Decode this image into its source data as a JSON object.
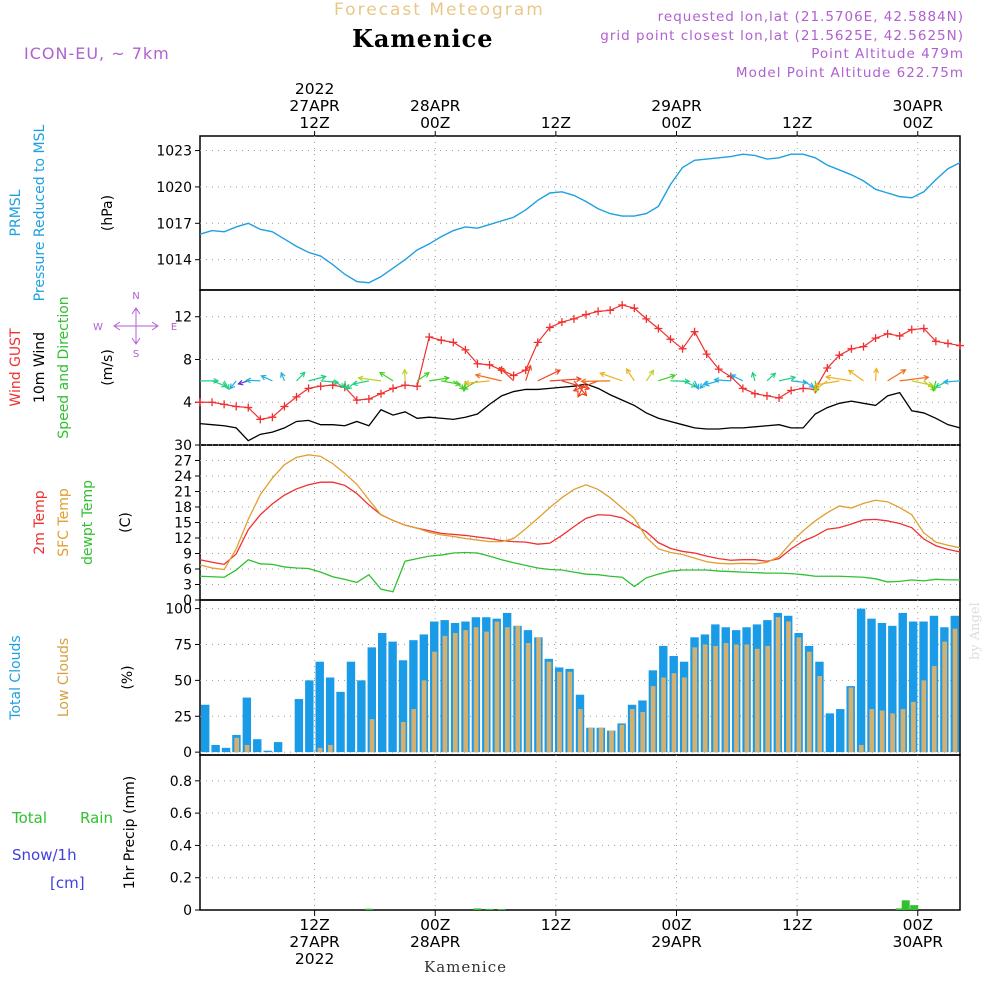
{
  "header": {
    "product": "Forecast Meteogram",
    "place": "Kamenice",
    "model": "ICON-EU, ~ 7km",
    "requested": "requested lon,lat (21.5706E, 42.5884N)",
    "grid_point": "grid point closest lon,lat (21.5625E, 42.5625N)",
    "point_altitude": "Point Altitude 479m",
    "model_altitude": "Model Point Altitude 622.75m",
    "byline": "by Angel",
    "footer": "Kamenice"
  },
  "time_axis": {
    "start_hour": 0,
    "end_hour": 63,
    "gridline_hours": [
      9.5,
      19.5,
      29.5,
      39.5,
      49.5,
      59.5
    ],
    "top_labels": [
      {
        "hour": 9.5,
        "lines": [
          "2022",
          "27APR",
          "12Z"
        ]
      },
      {
        "hour": 19.5,
        "lines": [
          "28APR",
          "00Z"
        ]
      },
      {
        "hour": 29.5,
        "lines": [
          "12Z"
        ]
      },
      {
        "hour": 39.5,
        "lines": [
          "29APR",
          "00Z"
        ]
      },
      {
        "hour": 49.5,
        "lines": [
          "12Z"
        ]
      },
      {
        "hour": 59.5,
        "lines": [
          "30APR",
          "00Z"
        ]
      }
    ],
    "bottom_labels": [
      {
        "hour": 9.5,
        "lines": [
          "12Z",
          "27APR",
          "2022"
        ]
      },
      {
        "hour": 19.5,
        "lines": [
          "00Z",
          "28APR"
        ]
      },
      {
        "hour": 29.5,
        "lines": [
          "12Z"
        ]
      },
      {
        "hour": 39.5,
        "lines": [
          "00Z",
          "29APR"
        ]
      },
      {
        "hour": 49.5,
        "lines": [
          "12Z"
        ]
      },
      {
        "hour": 59.5,
        "lines": [
          "00Z",
          "30APR"
        ]
      }
    ]
  },
  "chart_data": [
    {
      "type": "line",
      "panel": "pressure",
      "ylabels": [
        {
          "text": "PRMSL",
          "color": "#1fa0e0"
        },
        {
          "text": "Pressure Reduced to MSL",
          "color": "#1fa0e0"
        }
      ],
      "unit": "(hPa)",
      "ylim": [
        1011.5,
        1024.2
      ],
      "yticks": [
        1014,
        1017,
        1020,
        1023
      ],
      "series": [
        {
          "color": "#1fa0e0",
          "values": [
            1016.1,
            1016.4,
            1016.3,
            1016.7,
            1017.0,
            1016.5,
            1016.3,
            1015.7,
            1015.1,
            1014.6,
            1014.3,
            1013.6,
            1012.8,
            1012.2,
            1012.1,
            1012.6,
            1013.3,
            1014.0,
            1014.8,
            1015.3,
            1015.9,
            1016.4,
            1016.7,
            1016.6,
            1016.9,
            1017.2,
            1017.5,
            1018.1,
            1018.9,
            1019.5,
            1019.6,
            1019.3,
            1018.8,
            1018.2,
            1017.8,
            1017.6,
            1017.6,
            1017.8,
            1018.4,
            1020.2,
            1021.6,
            1022.2,
            1022.3,
            1022.4,
            1022.5,
            1022.7,
            1022.6,
            1022.3,
            1022.4,
            1022.7,
            1022.7,
            1022.4,
            1021.8,
            1021.4,
            1021.0,
            1020.5,
            1019.8,
            1019.5,
            1019.2,
            1019.1,
            1019.6,
            1020.6,
            1021.5,
            1022.0
          ]
        }
      ]
    },
    {
      "type": "line",
      "panel": "wind",
      "ylabels": [
        {
          "text": "Wind GUST",
          "color": "#f03030"
        },
        {
          "text": "10m Wind",
          "color": "#000000"
        },
        {
          "text": "Speed and Direction",
          "color": "#30c030"
        }
      ],
      "unit": "(m/s)",
      "ylim": [
        0,
        14.5
      ],
      "yticks": [
        4,
        8,
        12
      ],
      "compass": {
        "n": "N",
        "s": "S",
        "w": "W",
        "e": "E"
      },
      "series": [
        {
          "name": "Wind GUST",
          "color": "#f03030",
          "marker": "+",
          "values": [
            4.0,
            4.0,
            3.8,
            3.6,
            3.5,
            2.4,
            2.6,
            3.6,
            4.5,
            5.3,
            5.5,
            5.6,
            5.4,
            4.2,
            4.3,
            4.8,
            5.3,
            5.6,
            5.5,
            10.1,
            9.8,
            9.6,
            8.9,
            7.6,
            7.5,
            7.0,
            6.5,
            7.0,
            9.6,
            11.0,
            11.5,
            11.8,
            12.2,
            12.5,
            12.6,
            13.1,
            12.8,
            11.8,
            10.9,
            9.9,
            9.0,
            10.6,
            8.5,
            7.1,
            6.4,
            5.3,
            4.8,
            4.6,
            4.4,
            5.1,
            5.3,
            5.2,
            7.2,
            8.4,
            9.0,
            9.2,
            10.0,
            10.4,
            10.2,
            10.8,
            10.9,
            9.7,
            9.5,
            9.3
          ]
        },
        {
          "name": "10m Wind",
          "color": "#000000",
          "values": [
            2.0,
            1.9,
            1.8,
            1.6,
            0.4,
            1.0,
            1.2,
            1.6,
            2.2,
            2.3,
            1.9,
            1.9,
            1.8,
            2.2,
            1.8,
            3.3,
            2.8,
            3.1,
            2.5,
            2.6,
            2.5,
            2.4,
            2.6,
            2.9,
            3.8,
            4.6,
            5.0,
            5.2,
            5.2,
            5.3,
            5.4,
            5.5,
            5.7,
            5.3,
            4.7,
            4.2,
            3.7,
            3.0,
            2.5,
            2.2,
            1.9,
            1.6,
            1.5,
            1.5,
            1.6,
            1.6,
            1.7,
            1.8,
            1.9,
            1.6,
            1.6,
            2.9,
            3.5,
            3.9,
            4.1,
            3.9,
            3.7,
            4.6,
            4.9,
            3.2,
            3.0,
            2.5,
            1.9,
            1.6
          ]
        }
      ]
    },
    {
      "type": "line",
      "panel": "temperature",
      "ylabels": [
        {
          "text": "2m Temp",
          "color": "#f03030"
        },
        {
          "text": "SFC Temp",
          "color": "#e0a030"
        },
        {
          "text": "dewpt Temp",
          "color": "#30c030"
        }
      ],
      "unit": "(C)",
      "ylim": [
        0,
        30
      ],
      "yticks": [
        0,
        3,
        6,
        9,
        12,
        15,
        18,
        21,
        24,
        27,
        30
      ],
      "series": [
        {
          "name": "2m Temp",
          "color": "#f03030",
          "values": [
            7.8,
            7.3,
            6.9,
            8.9,
            13.6,
            16.5,
            18.6,
            20.3,
            21.5,
            22.3,
            22.8,
            22.8,
            22.2,
            20.6,
            18.4,
            16.5,
            15.4,
            14.5,
            13.9,
            13.4,
            12.9,
            12.7,
            12.5,
            12.2,
            11.9,
            11.5,
            11.3,
            11.2,
            10.8,
            11.0,
            12.5,
            14.2,
            15.8,
            16.5,
            16.4,
            15.9,
            14.5,
            13.2,
            11.1,
            10.0,
            9.4,
            9.1,
            8.5,
            8.0,
            7.7,
            7.8,
            7.8,
            7.5,
            8.0,
            9.9,
            11.4,
            12.4,
            13.7,
            14.0,
            14.7,
            15.5,
            15.6,
            15.3,
            14.8,
            14.0,
            11.8,
            10.5,
            9.8,
            9.3
          ]
        },
        {
          "name": "SFC Temp",
          "color": "#e0a030",
          "values": [
            6.8,
            6.2,
            5.9,
            9.9,
            15.6,
            20.4,
            23.6,
            26.2,
            27.6,
            28.1,
            27.8,
            26.4,
            24.5,
            22.4,
            19.4,
            16.5,
            15.4,
            14.5,
            13.9,
            13.1,
            12.6,
            12.3,
            11.9,
            11.6,
            11.3,
            11.3,
            11.9,
            13.8,
            15.8,
            17.9,
            19.8,
            21.4,
            22.3,
            21.4,
            19.8,
            17.8,
            15.8,
            12.1,
            9.9,
            9.2,
            8.8,
            8.1,
            7.4,
            7.1,
            7.0,
            7.1,
            7.0,
            7.3,
            8.4,
            11.1,
            13.4,
            15.3,
            16.9,
            18.2,
            17.8,
            18.7,
            19.3,
            19.0,
            17.9,
            16.5,
            13.0,
            11.2,
            10.6,
            10.1
          ]
        },
        {
          "name": "dewpt Temp",
          "color": "#30c030",
          "values": [
            4.6,
            4.5,
            4.4,
            5.8,
            7.8,
            7.0,
            6.9,
            6.4,
            6.2,
            6.1,
            5.4,
            4.5,
            4.0,
            3.4,
            4.9,
            2.1,
            1.6,
            7.5,
            8.0,
            8.5,
            8.7,
            9.1,
            9.2,
            9.1,
            8.5,
            7.8,
            7.2,
            6.7,
            6.2,
            5.9,
            5.8,
            5.4,
            5.0,
            4.9,
            4.6,
            4.4,
            2.6,
            4.3,
            5.0,
            5.6,
            5.8,
            5.8,
            5.8,
            5.6,
            5.5,
            5.4,
            5.3,
            5.2,
            5.2,
            5.1,
            4.9,
            4.6,
            4.6,
            4.6,
            4.5,
            4.4,
            4.1,
            3.5,
            3.6,
            3.9,
            3.7,
            4.0,
            3.9,
            3.9
          ]
        }
      ]
    },
    {
      "type": "bar",
      "panel": "clouds",
      "ylabels": [
        {
          "text": "Total Clouds",
          "color": "#1fa0e0"
        },
        {
          "text": "Low Clouds",
          "color": "#d4a040"
        }
      ],
      "unit": "(%)",
      "ylim": [
        -2,
        106
      ],
      "yticks": [
        0,
        25,
        50,
        75,
        100
      ],
      "series": [
        {
          "name": "Total Clouds",
          "color": "#1a9be8",
          "values": [
            33,
            5,
            3,
            12,
            38,
            9,
            1,
            7,
            0,
            37,
            50,
            63,
            52,
            42,
            63,
            50,
            73,
            83,
            77,
            64,
            78,
            82,
            91,
            92,
            90,
            91,
            94,
            94,
            93,
            97,
            88,
            85,
            80,
            65,
            59,
            58,
            40,
            17,
            17,
            15,
            20,
            33,
            36,
            57,
            74,
            67,
            63,
            80,
            82,
            89,
            87,
            85,
            87,
            89,
            92,
            97,
            95,
            83,
            74,
            63,
            27,
            30,
            46,
            100,
            93,
            90,
            88,
            97,
            91,
            91,
            95,
            87,
            95
          ]
        },
        {
          "name": "Low Clouds",
          "color": "#d4b070",
          "values": [
            0,
            0,
            0,
            10,
            5,
            0,
            0,
            0,
            0,
            0,
            0,
            3,
            5,
            0,
            0,
            0,
            23,
            0,
            0,
            21,
            30,
            50,
            70,
            81,
            83,
            85,
            87,
            84,
            91,
            87,
            88,
            76,
            80,
            63,
            56,
            56,
            30,
            17,
            17,
            15,
            19,
            30,
            28,
            46,
            52,
            55,
            52,
            73,
            75,
            74,
            76,
            75,
            75,
            72,
            74,
            94,
            91,
            80,
            70,
            53,
            0,
            0,
            45,
            5,
            30,
            29,
            27,
            30,
            35,
            50,
            60,
            77,
            86
          ]
        }
      ]
    },
    {
      "type": "bar",
      "panel": "precip",
      "ylabels": [
        {
          "text": "Total",
          "color": "#30c030"
        },
        {
          "text": "Rain",
          "color": "#30c030"
        },
        {
          "text": "Snow/1h",
          "color": "#4040e0"
        },
        {
          "text": "[cm]",
          "color": "#4040e0"
        }
      ],
      "unit": "1hr Precip (mm)",
      "ylim": [
        0,
        0.96
      ],
      "yticks": [
        0,
        0.2,
        0.4,
        0.6,
        0.8
      ],
      "yticklabels": [
        "0",
        "0.2",
        "0.4",
        "0.6",
        "0.8"
      ],
      "series": [
        {
          "name": "Total",
          "color": "#30c030",
          "points": [
            [
              14,
              0.008
            ],
            [
              23,
              0.01
            ],
            [
              24,
              0.007
            ],
            [
              25,
              0.005
            ],
            [
              58,
              0.01
            ],
            [
              58.5,
              0.06
            ],
            [
              59.2,
              0.03
            ]
          ]
        }
      ]
    }
  ]
}
